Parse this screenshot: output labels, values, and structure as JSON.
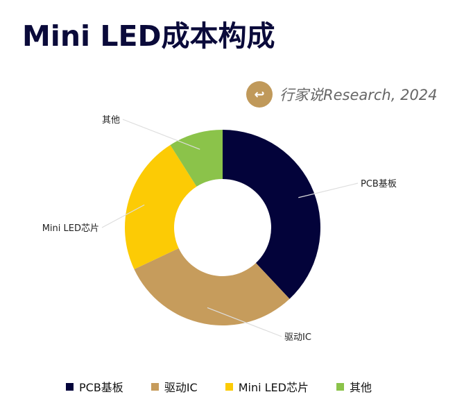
{
  "title": "Mini LED成本构成",
  "source": "行家说Research, 2024",
  "chart_data": {
    "type": "pie",
    "donut": true,
    "title": "Mini LED成本构成",
    "categories": [
      "PCB基板",
      "驱动IC",
      "Mini LED芯片",
      "其他"
    ],
    "values": [
      38,
      30,
      23,
      9
    ],
    "colors": [
      "#03033a",
      "#c69c5c",
      "#fccb05",
      "#8bc34a"
    ],
    "legend_position": "bottom"
  }
}
